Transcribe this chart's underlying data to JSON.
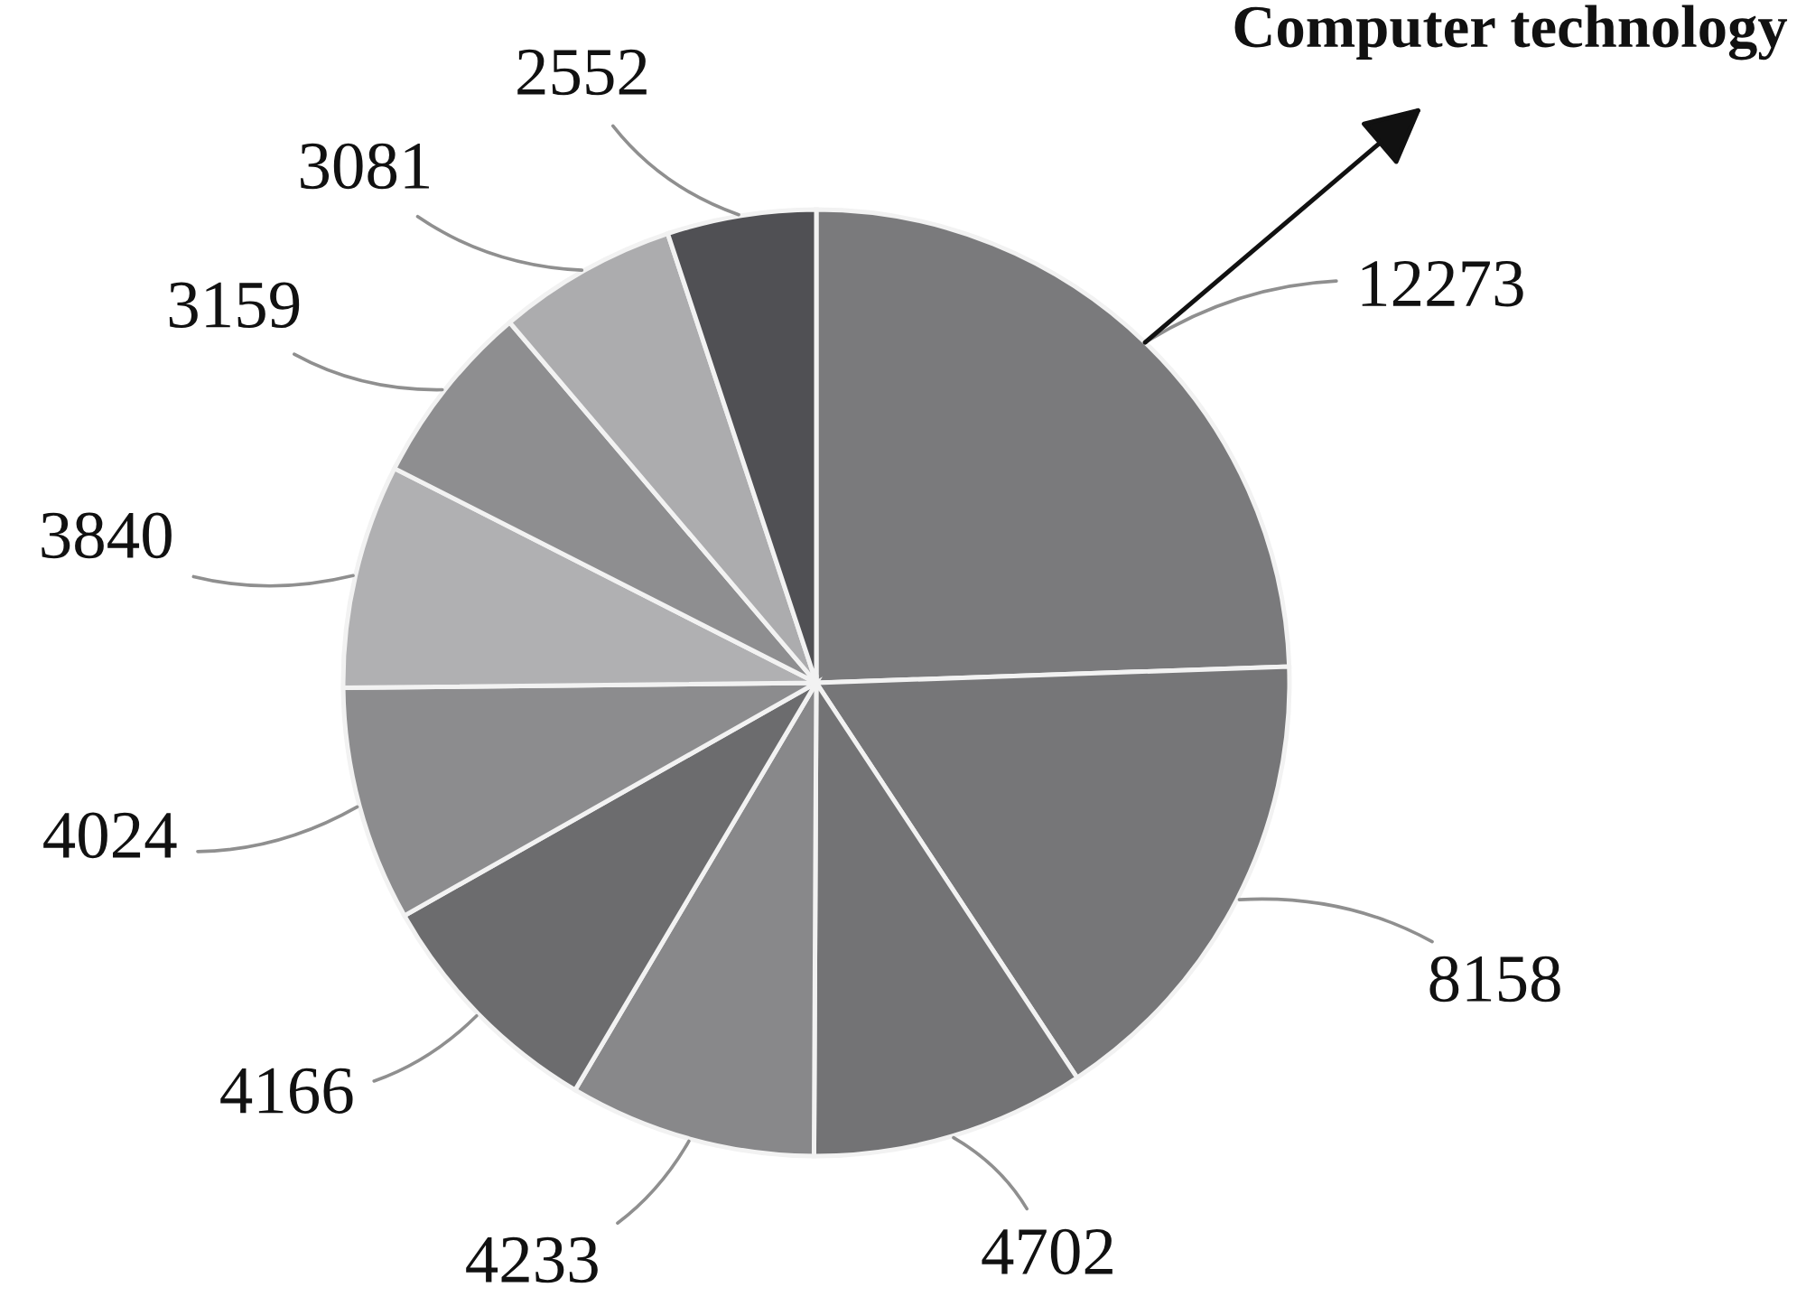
{
  "chart_data": {
    "type": "pie",
    "categories": [
      "Computer technology",
      null,
      null,
      null,
      null,
      null,
      null,
      null,
      null,
      null
    ],
    "values": [
      12273,
      8158,
      4702,
      4233,
      4166,
      4024,
      3840,
      3159,
      3081,
      2552
    ],
    "colors": [
      "#7a7a7c",
      "#767678",
      "#737375",
      "#88888a",
      "#6c6c6e",
      "#8c8c8e",
      "#b0b0b2",
      "#8e8e90",
      "#acacae",
      "#505054"
    ],
    "data_labels": true
  }
}
